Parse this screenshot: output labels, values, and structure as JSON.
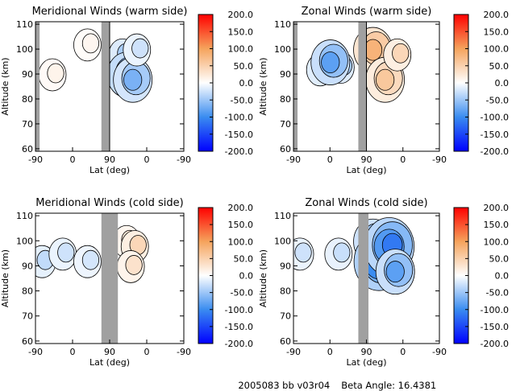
{
  "colors": {
    "background": "#ffffff",
    "no_data_gray": "#a0a0a0",
    "contour_line": "#000000",
    "colorbar_stops": [
      "#0000ff",
      "#3a8cf0",
      "#ffffff",
      "#f5a35c",
      "#ff0000"
    ]
  },
  "footer": {
    "run_id": "2005083 bb v03r04",
    "beta_label": "Beta Angle: 16.4381"
  },
  "chart_data": [
    {
      "type": "heatmap",
      "title": "Meridional Winds (warm side)",
      "xlabel": "Lat (deg)",
      "ylabel": "Altitude (km)",
      "x_tick_labels": [
        "-90",
        "0",
        "90",
        "0",
        "-90"
      ],
      "y_ticks": [
        60,
        70,
        80,
        90,
        100,
        110
      ],
      "ylim": [
        59,
        111
      ],
      "colorbar_ticks": [
        "200.0",
        "150.0",
        "100.0",
        "50.0",
        "0.0",
        "-50.0",
        "-100.0",
        "-150.0",
        "-200.0"
      ],
      "colorbar_range": [
        -200,
        200
      ],
      "no_data_lat_ranges": [
        [
          -90,
          -80
        ],
        [
          70,
          90
        ]
      ],
      "data_cutoff_lat": 90,
      "features": [
        {
          "lat": -45,
          "alt": 90,
          "value": 20
        },
        {
          "lat": 40,
          "alt": 102,
          "value": 15
        },
        {
          "lat": 125,
          "alt": 98,
          "value": -70
        },
        {
          "lat": 135,
          "alt": 90,
          "value": -120
        },
        {
          "lat": 150,
          "alt": 88,
          "value": -90
        },
        {
          "lat": 160,
          "alt": 100,
          "value": -40
        }
      ]
    },
    {
      "type": "heatmap",
      "title": "Zonal Winds (warm side)",
      "xlabel": "Lat (deg)",
      "ylabel": "Altitude (km)",
      "x_tick_labels": [
        "-90",
        "0",
        "90",
        "0",
        "-90"
      ],
      "y_ticks": [
        60,
        70,
        80,
        90,
        100,
        110
      ],
      "ylim": [
        59,
        111
      ],
      "colorbar_ticks": [
        "200.0",
        "150.0",
        "100.0",
        "50.0",
        "0.0",
        "-50.0",
        "-100.0",
        "-150.0",
        "-200.0"
      ],
      "colorbar_range": [
        -200,
        200
      ],
      "no_data_lat_ranges": [
        [
          -90,
          -80
        ],
        [
          70,
          90
        ]
      ],
      "data_cutoff_lat": 90,
      "features": [
        {
          "lat": -20,
          "alt": 92,
          "value": -60
        },
        {
          "lat": 30,
          "alt": 93,
          "value": -70
        },
        {
          "lat": 5,
          "alt": 95,
          "value": -110
        },
        {
          "lat": 110,
          "alt": 100,
          "value": 110
        },
        {
          "lat": 140,
          "alt": 88,
          "value": 80
        },
        {
          "lat": 170,
          "alt": 98,
          "value": 70
        }
      ]
    },
    {
      "type": "heatmap",
      "title": "Meridional Winds (cold side)",
      "xlabel": "Lat (deg)",
      "ylabel": "Altitude (km)",
      "x_tick_labels": [
        "-90",
        "0",
        "90",
        "0",
        "-90"
      ],
      "y_ticks": [
        60,
        70,
        80,
        90,
        100,
        110
      ],
      "ylim": [
        59,
        111
      ],
      "colorbar_ticks": [
        "200.0",
        "150.0",
        "100.0",
        "50.0",
        "0.0",
        "-50.0",
        "-100.0",
        "-150.0",
        "-200.0"
      ],
      "colorbar_range": [
        -200,
        200
      ],
      "no_data_lat_ranges": [
        [
          70,
          110
        ]
      ],
      "features": [
        {
          "lat": -70,
          "alt": 92,
          "value": -50
        },
        {
          "lat": -20,
          "alt": 95,
          "value": -40
        },
        {
          "lat": 40,
          "alt": 92,
          "value": -35
        },
        {
          "lat": 135,
          "alt": 100,
          "value": 40
        },
        {
          "lat": 155,
          "alt": 98,
          "value": 70
        },
        {
          "lat": 145,
          "alt": 90,
          "value": 50
        }
      ]
    },
    {
      "type": "heatmap",
      "title": "Zonal Winds (cold side)",
      "xlabel": "Lat (deg)",
      "ylabel": "Altitude (km)",
      "x_tick_labels": [
        "-90",
        "0",
        "90",
        "0",
        "-90"
      ],
      "y_ticks": [
        60,
        70,
        80,
        90,
        100,
        110
      ],
      "ylim": [
        59,
        111
      ],
      "colorbar_ticks": [
        "200.0",
        "150.0",
        "100.0",
        "50.0",
        "0.0",
        "-50.0",
        "-100.0",
        "-150.0",
        "-200.0"
      ],
      "colorbar_range": [
        -200,
        200
      ],
      "no_data_lat_ranges": [
        [
          70,
          95
        ]
      ],
      "features": [
        {
          "lat": -70,
          "alt": 95,
          "value": -40
        },
        {
          "lat": 25,
          "alt": 95,
          "value": -45
        },
        {
          "lat": 110,
          "alt": 100,
          "value": -100
        },
        {
          "lat": 125,
          "alt": 92,
          "value": -160
        },
        {
          "lat": 150,
          "alt": 98,
          "value": -140
        },
        {
          "lat": 165,
          "alt": 88,
          "value": -110
        }
      ]
    }
  ]
}
